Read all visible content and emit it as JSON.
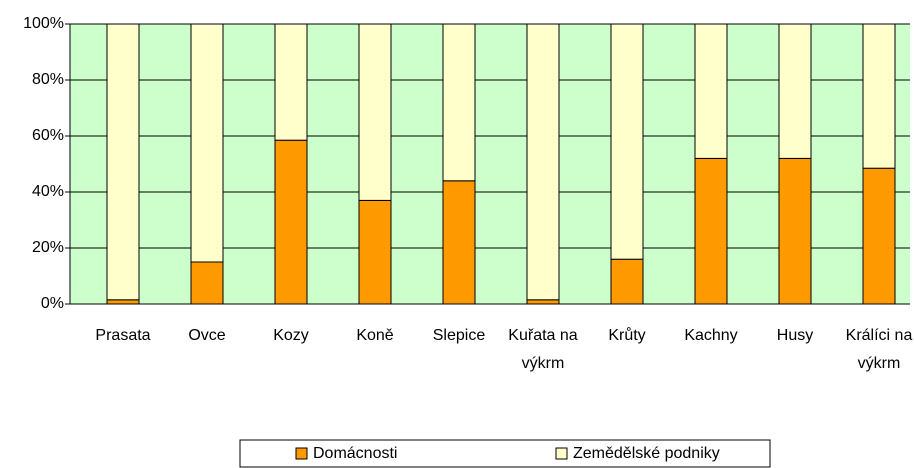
{
  "chart_data": {
    "type": "stacked_bar_100",
    "categories": [
      "Prasata",
      "Ovce",
      "Kozy",
      "Koně",
      "Slepice",
      "Kuřata na výkrm",
      "Krůty",
      "Kachny",
      "Husy",
      "Králíci na výkrm"
    ],
    "series": [
      {
        "name": "Domácnosti",
        "color": "#ff9900",
        "values": [
          1.5,
          15,
          58.5,
          37,
          44,
          1.5,
          16,
          52,
          52,
          48.5
        ]
      },
      {
        "name": "Zemědělské podniky",
        "color": "#ffffcc",
        "values": [
          98.5,
          85,
          41.5,
          63,
          56,
          98.5,
          84,
          48,
          48,
          51.5
        ]
      }
    ],
    "ylim": [
      0,
      100
    ],
    "yticks": [
      {
        "value": 0,
        "label": "0%"
      },
      {
        "value": 20,
        "label": "20%"
      },
      {
        "value": 40,
        "label": "40%"
      },
      {
        "value": 60,
        "label": "60%"
      },
      {
        "value": 80,
        "label": "80%"
      },
      {
        "value": 100,
        "label": "100%"
      }
    ],
    "grid": true,
    "legend": "bottom",
    "background": "#ccffcc"
  }
}
